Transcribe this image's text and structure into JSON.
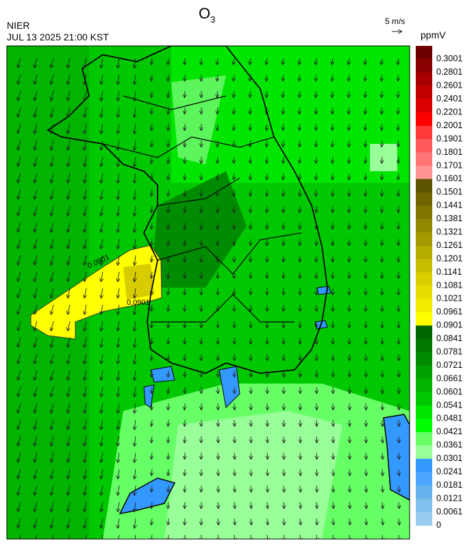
{
  "header": {
    "title": "O",
    "title_sub": "3",
    "agency": "NIER",
    "datetime": "JUL 13 2025 21:00 KST",
    "wind_scale": "5 m/s",
    "unit": "ppmV"
  },
  "contour_label": "0.0901",
  "colorbar": [
    {
      "label": "0.3001",
      "color": "#6e0000"
    },
    {
      "label": "0.2801",
      "color": "#8a0000"
    },
    {
      "label": "0.2601",
      "color": "#a60000"
    },
    {
      "label": "0.2401",
      "color": "#c20000"
    },
    {
      "label": "0.2201",
      "color": "#de0000"
    },
    {
      "label": "0.2001",
      "color": "#ff0000"
    },
    {
      "label": "0.1901",
      "color": "#ff3a3a"
    },
    {
      "label": "0.1801",
      "color": "#ff5a5a"
    },
    {
      "label": "0.1701",
      "color": "#ff7474"
    },
    {
      "label": "0.1601",
      "color": "#ff9494"
    },
    {
      "label": "0.1501",
      "color": "#5c5200"
    },
    {
      "label": "0.1441",
      "color": "#6e6400"
    },
    {
      "label": "0.1381",
      "color": "#807500"
    },
    {
      "label": "0.1321",
      "color": "#928700"
    },
    {
      "label": "0.1261",
      "color": "#a49900"
    },
    {
      "label": "0.1201",
      "color": "#b6ab00"
    },
    {
      "label": "0.1141",
      "color": "#c8bd00"
    },
    {
      "label": "0.1081",
      "color": "#dacf00"
    },
    {
      "label": "0.1021",
      "color": "#e6de00"
    },
    {
      "label": "0.0961",
      "color": "#f2ec00"
    },
    {
      "label": "0.0901",
      "color": "#ffff00"
    },
    {
      "label": "0.0841",
      "color": "#006400"
    },
    {
      "label": "0.0781",
      "color": "#007800"
    },
    {
      "label": "0.0721",
      "color": "#008c00"
    },
    {
      "label": "0.0661",
      "color": "#00a000"
    },
    {
      "label": "0.0601",
      "color": "#00b400"
    },
    {
      "label": "0.0541",
      "color": "#00c800"
    },
    {
      "label": "0.0481",
      "color": "#00e600"
    },
    {
      "label": "0.0421",
      "color": "#00ff00"
    },
    {
      "label": "0.0361",
      "color": "#66ff66"
    },
    {
      "label": "0.0301",
      "color": "#99ff99"
    },
    {
      "label": "0.0241",
      "color": "#3399ff"
    },
    {
      "label": "0.0181",
      "color": "#4da6ff"
    },
    {
      "label": "0.0121",
      "color": "#66b3f0"
    },
    {
      "label": "0.0061",
      "color": "#80bfee"
    },
    {
      "label": "0",
      "color": "#99ccee"
    }
  ]
}
